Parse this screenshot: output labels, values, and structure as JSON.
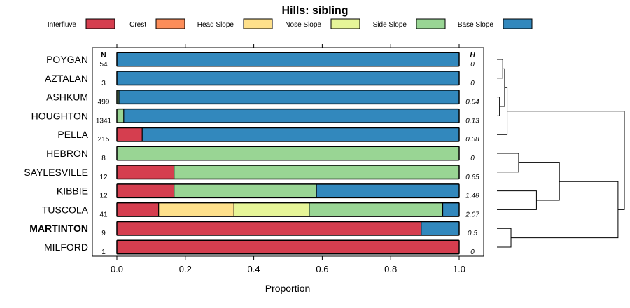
{
  "chart_data": {
    "type": "bar",
    "orientation": "horizontal-stacked",
    "title": "Hills: sibling",
    "xlabel": "Proportion",
    "ylabel": "",
    "xlim": [
      0,
      1
    ],
    "x_ticks": [
      "0.0",
      "0.2",
      "0.4",
      "0.6",
      "0.8",
      "1.0"
    ],
    "x_tick_values": [
      0,
      0.2,
      0.4,
      0.6,
      0.8,
      1.0
    ],
    "n_header": "N",
    "h_header": "H",
    "legend_position": "top",
    "legend": [
      {
        "name": "Interfluve",
        "color": "#d53e4f"
      },
      {
        "name": "Crest",
        "color": "#fc8d59"
      },
      {
        "name": "Head Slope",
        "color": "#fee08b"
      },
      {
        "name": "Nose Slope",
        "color": "#e6f598"
      },
      {
        "name": "Side Slope",
        "color": "#99d594"
      },
      {
        "name": "Base Slope",
        "color": "#3288bd"
      }
    ],
    "categories": [
      {
        "name": "POYGAN",
        "n": "54",
        "h": "0",
        "bold": false,
        "values": [
          0,
          0,
          0,
          0,
          0,
          1.0
        ]
      },
      {
        "name": "AZTALAN",
        "n": "3",
        "h": "0",
        "bold": false,
        "values": [
          0,
          0,
          0,
          0,
          0,
          1.0
        ]
      },
      {
        "name": "ASHKUM",
        "n": "499",
        "h": "0.04",
        "bold": false,
        "values": [
          0,
          0,
          0,
          0,
          0.006,
          0.994
        ]
      },
      {
        "name": "HOUGHTON",
        "n": "1341",
        "h": "0.13",
        "bold": false,
        "values": [
          0,
          0,
          0,
          0,
          0.02,
          0.98
        ]
      },
      {
        "name": "PELLA",
        "n": "215",
        "h": "0.38",
        "bold": false,
        "values": [
          0.074,
          0,
          0,
          0,
          0,
          0.926
        ]
      },
      {
        "name": "HEBRON",
        "n": "8",
        "h": "0",
        "bold": false,
        "values": [
          0,
          0,
          0,
          0,
          1.0,
          0
        ]
      },
      {
        "name": "SAYLESVILLE",
        "n": "12",
        "h": "0.65",
        "bold": false,
        "values": [
          0.167,
          0,
          0,
          0,
          0.833,
          0
        ]
      },
      {
        "name": "KIBBIE",
        "n": "12",
        "h": "1.48",
        "bold": false,
        "values": [
          0.167,
          0,
          0,
          0,
          0.416,
          0.417
        ]
      },
      {
        "name": "TUSCOLA",
        "n": "41",
        "h": "2.07",
        "bold": false,
        "values": [
          0.122,
          0,
          0.22,
          0.22,
          0.39,
          0.048
        ]
      },
      {
        "name": "MARTINTON",
        "n": "9",
        "h": "0.5",
        "bold": true,
        "values": [
          0.889,
          0,
          0,
          0,
          0,
          0.111
        ]
      },
      {
        "name": "MILFORD",
        "n": "1",
        "h": "0",
        "bold": false,
        "values": [
          1.0,
          0,
          0,
          0,
          0,
          0
        ]
      }
    ],
    "dendrogram": {
      "description": "hierarchical clustering tree of the series",
      "merges": [
        {
          "children": [
            "ASHKUM",
            "HOUGHTON"
          ],
          "height": 0.02
        },
        {
          "children": [
            "POYGAN",
            "AZTALAN"
          ],
          "height": 0.045
        },
        {
          "children": [
            "m1",
            "m0"
          ],
          "height": 0.06
        },
        {
          "children": [
            "m2",
            "PELLA"
          ],
          "height": 0.08
        },
        {
          "children": [
            "HEBRON",
            "SAYLESVILLE"
          ],
          "height": 0.17
        },
        {
          "children": [
            "KIBBIE",
            "TUSCOLA"
          ],
          "height": 0.31
        },
        {
          "children": [
            "m4",
            "m5"
          ],
          "height": 0.49
        },
        {
          "children": [
            "MARTINTON",
            "MILFORD"
          ],
          "height": 0.11
        },
        {
          "children": [
            "m6",
            "m7"
          ],
          "height": 0.95
        },
        {
          "children": [
            "m3",
            "m8"
          ],
          "height": 1.0
        }
      ]
    }
  }
}
